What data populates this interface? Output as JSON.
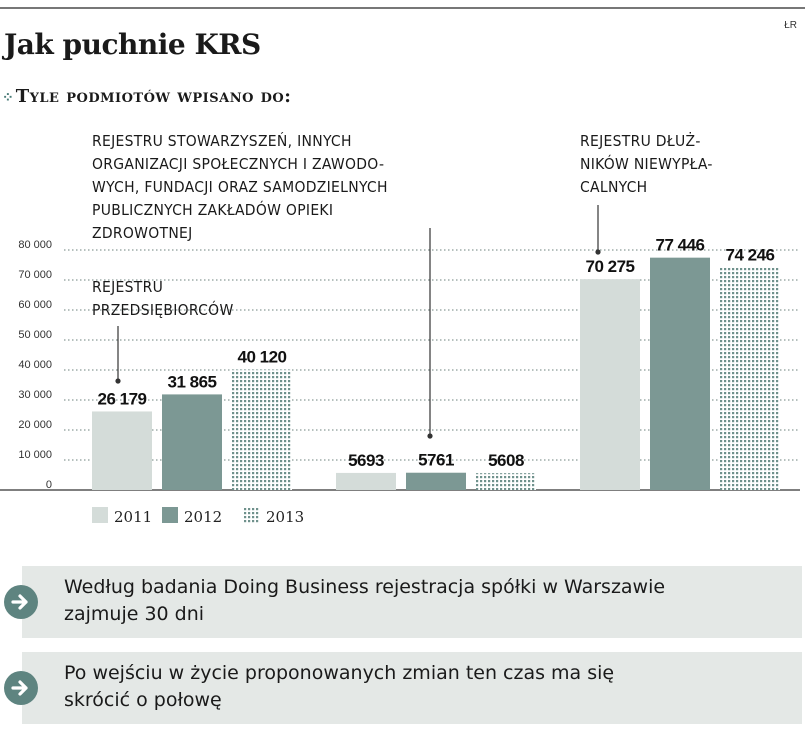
{
  "header": {
    "credit": "ŁR",
    "title": "Jak puchnie KRS",
    "subtitle": "Tyle podmiotów wpisano do:"
  },
  "annotations": {
    "ngo": [
      "REJESTRU STOWARZYSZEŃ, INNYCH",
      "ORGANIZACJI SPOŁECZNYCH I ZAWODO-",
      "WYCH, FUNDACJI ORAZ SAMODZIELNYCH",
      "PUBLICZNYCH ZAKŁADÓW OPIEKI",
      "ZDROWOTNEJ"
    ],
    "debtors": [
      "REJESTRU DŁUŻ-",
      "NIKÓW NIEWYPŁA-",
      "CALNYCH"
    ],
    "entrepreneurs": [
      "REJESTRU",
      "PRZEDSIĘBIORCÓW"
    ]
  },
  "chart_data": {
    "type": "bar",
    "categories": [
      "Rejestr przedsiębiorców",
      "Rejestr stowarzyszeń, innych organizacji społecznych i zawodowych, fundacji oraz samodzielnych publicznych zakładów opieki zdrowotnej",
      "Rejestr dłużników niewypłacalnych"
    ],
    "series": [
      {
        "name": "2011",
        "values": [
          26179,
          5693,
          70275
        ],
        "labels": [
          "26 179",
          "5693",
          "70 275"
        ],
        "color": "#d4dcd9",
        "pattern": "solid"
      },
      {
        "name": "2012",
        "values": [
          31865,
          5761,
          77446
        ],
        "labels": [
          "31 865",
          "5761",
          "77 446"
        ],
        "color": "#7c9894",
        "pattern": "solid"
      },
      {
        "name": "2013",
        "values": [
          40120,
          5608,
          74246
        ],
        "labels": [
          "40 120",
          "5608",
          "74 246"
        ],
        "color": "#6f918c",
        "pattern": "dotted-grid"
      }
    ],
    "yticks": [
      "0",
      "10 000",
      "20 000",
      "30 000",
      "40 000",
      "50 000",
      "60 000",
      "70 000",
      "80 000"
    ],
    "ylim": [
      0,
      80000
    ],
    "grid": "dotted horizontal",
    "legend": "bottom-left"
  },
  "notes": [
    {
      "lines": [
        "Według badania Doing Business rejestracja spółki w Warszawie",
        "zajmuje 30 dni"
      ],
      "icon": "arrow-right-icon"
    },
    {
      "lines": [
        "Po wejściu w życie proponowanych zmian ten czas ma się",
        "skrócić o połowę"
      ],
      "icon": "arrow-right-icon"
    }
  ]
}
